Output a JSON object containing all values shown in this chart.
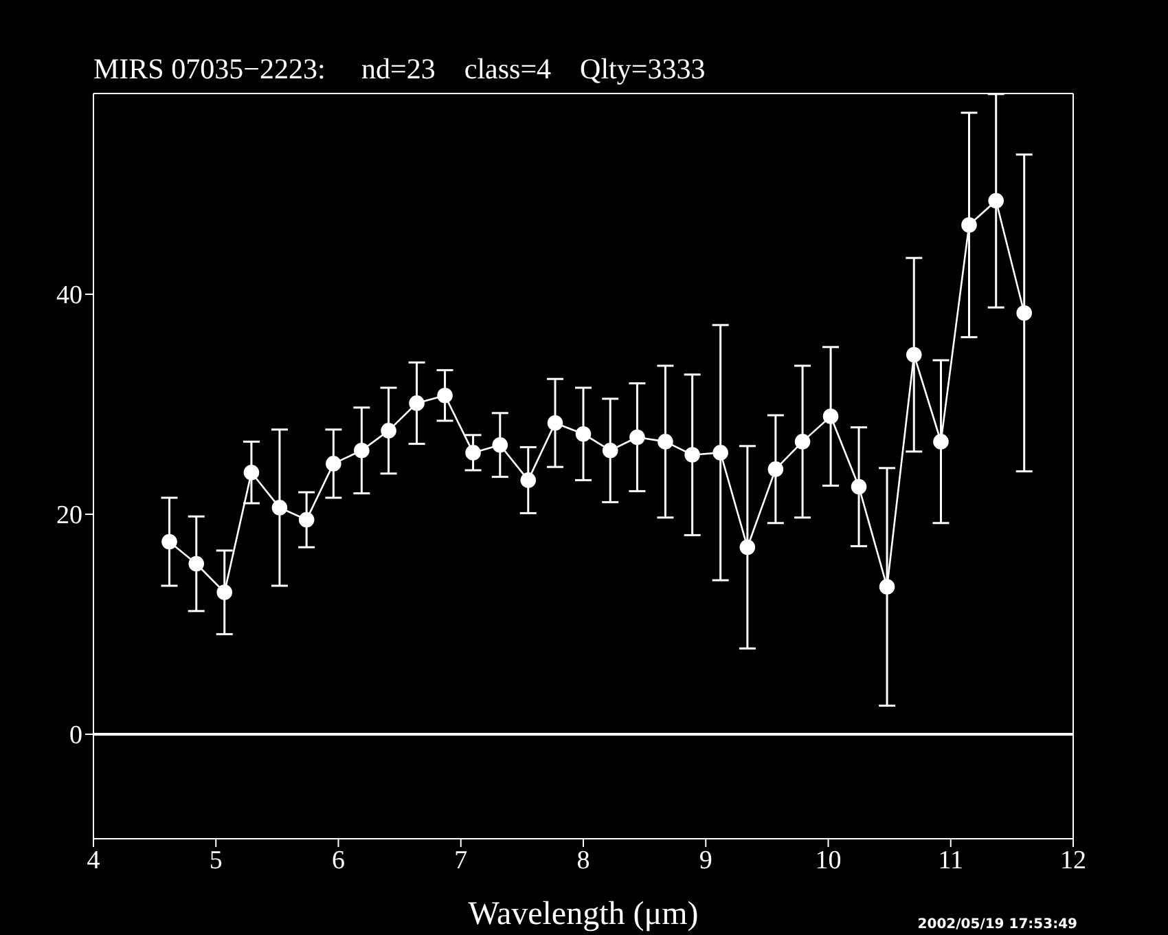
{
  "chart_data": {
    "type": "line",
    "title": "MIRS 07035−2223:     nd=23    class=4    Qlty=3333",
    "xlabel": "Wavelength (μm)",
    "annotations": [
      "2002/05/19 17:53:49"
    ],
    "x": [
      4.62,
      4.84,
      5.07,
      5.29,
      5.52,
      5.74,
      5.96,
      6.19,
      6.41,
      6.64,
      6.87,
      7.1,
      7.32,
      7.55,
      7.77,
      8.0,
      8.22,
      8.44,
      8.67,
      8.89,
      9.12,
      9.34,
      9.57,
      9.79,
      10.02,
      10.25,
      10.48,
      10.7,
      10.92,
      11.15,
      11.37,
      11.6
    ],
    "series": [
      {
        "color": "#ffffff",
        "values": [
          17.5,
          15.5,
          12.9,
          23.8,
          20.6,
          19.5,
          24.6,
          25.8,
          27.6,
          30.1,
          30.8,
          25.6,
          26.3,
          23.1,
          28.3,
          27.3,
          25.8,
          27.0,
          26.6,
          25.4,
          25.6,
          17.0,
          24.1,
          26.6,
          28.9,
          22.5,
          13.4,
          34.5,
          26.6,
          46.3,
          48.5,
          38.3
        ],
        "errors": [
          4.0,
          4.3,
          3.8,
          2.8,
          7.1,
          2.5,
          3.1,
          3.9,
          3.9,
          3.7,
          2.3,
          1.6,
          2.9,
          3.0,
          4.0,
          4.2,
          4.7,
          4.9,
          6.9,
          7.3,
          11.6,
          9.2,
          4.9,
          6.9,
          6.3,
          5.4,
          10.8,
          8.8,
          7.4,
          10.2,
          9.7,
          14.4
        ]
      }
    ],
    "marker": "circle",
    "line_style": "solid",
    "xlim": [
      4,
      12
    ],
    "xticks": [
      4,
      5,
      6,
      7,
      8,
      9,
      10,
      11,
      12
    ],
    "ylim": [
      -9.5,
      58.25
    ],
    "yticks": [
      0,
      20,
      40
    ],
    "ref_lines": [
      {
        "axis": "y",
        "value": 0,
        "color": "#ffffff",
        "line_style": "solid"
      }
    ],
    "grid": false,
    "legend": false
  }
}
